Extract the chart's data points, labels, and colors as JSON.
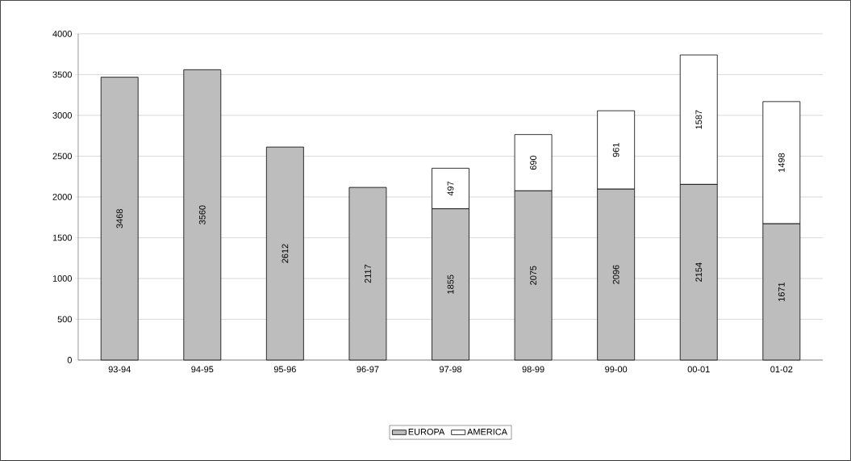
{
  "chart_data": {
    "type": "bar",
    "stacked": true,
    "categories": [
      "93-94",
      "94-95",
      "95-96",
      "96-97",
      "97-98",
      "98-99",
      "99-00",
      "00-01",
      "01-02"
    ],
    "series": [
      {
        "name": "EUROPA",
        "color": "#bdbdbd",
        "values": [
          3468,
          3560,
          2612,
          2117,
          1855,
          2075,
          2096,
          2154,
          1671
        ],
        "value_labels": [
          "3468",
          "3560",
          "2612",
          "2117",
          "1855",
          "2075",
          "2096",
          "2154",
          "1671"
        ]
      },
      {
        "name": "AMERICA",
        "color": "#ffffff",
        "values": [
          null,
          null,
          null,
          null,
          497,
          690,
          961,
          1587,
          1498
        ],
        "value_labels": [
          null,
          null,
          null,
          null,
          "497",
          "690",
          "961",
          "1587",
          "1498"
        ]
      }
    ],
    "ylim": [
      0,
      4000
    ],
    "yticks": [
      0,
      500,
      1000,
      1500,
      2000,
      2500,
      3000,
      3500,
      4000
    ],
    "grid": "y",
    "legend": "bottom"
  }
}
